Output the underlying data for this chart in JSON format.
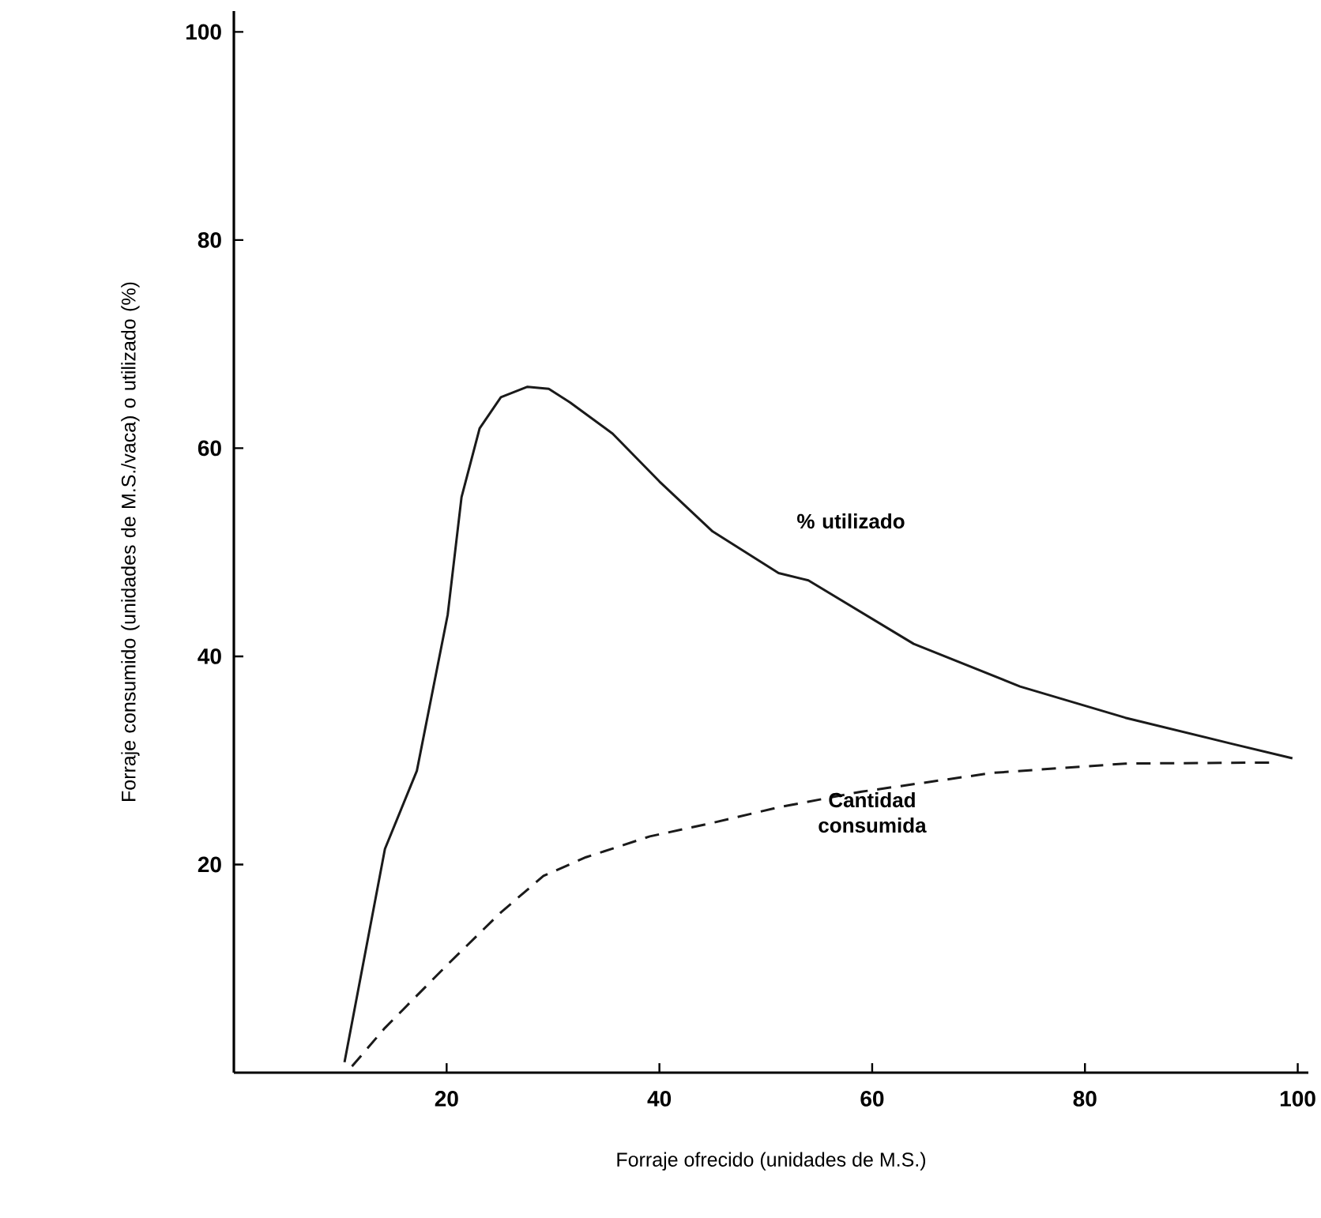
{
  "chart_data": {
    "type": "line",
    "xlabel": "Forraje ofrecido (unidades de M.S.)",
    "ylabel": "Forraje consumido (unidades de M.S./vaca) o utilizado (%)",
    "xlim": [
      0,
      101
    ],
    "ylim": [
      0,
      102
    ],
    "xticks": [
      20,
      40,
      60,
      80,
      100
    ],
    "yticks": [
      20,
      40,
      60,
      80,
      100
    ],
    "grid": false,
    "legend": false,
    "marker": "none",
    "series": [
      {
        "name": "% utilizado",
        "color": "#1a1a1a",
        "line_style": "solid",
        "x": [
          10.4,
          14.2,
          17.2,
          20.1,
          21.4,
          23.1,
          25.1,
          27.6,
          29.6,
          31.6,
          35.6,
          40,
          45,
          51.2,
          54,
          63.9,
          73.9,
          83.8,
          93.8,
          99.5
        ],
        "values": [
          1,
          21.5,
          29,
          44,
          55.3,
          61.9,
          64.9,
          65.9,
          65.7,
          64.4,
          61.4,
          56.8,
          52,
          48,
          47.3,
          41.2,
          37.1,
          34.1,
          31.6,
          30.2
        ]
      },
      {
        "name": "Cantidad consumida",
        "color": "#1a1a1a",
        "line_style": "dashed",
        "x": [
          11.1,
          14.2,
          20.1,
          25.1,
          29.1,
          33.1,
          39.1,
          45,
          51.2,
          59,
          71.3,
          83.8,
          98.2
        ],
        "values": [
          0.6,
          4.3,
          10.4,
          15.4,
          18.9,
          20.7,
          22.7,
          24,
          25.5,
          27,
          28.8,
          29.7,
          29.8
        ]
      }
    ]
  }
}
